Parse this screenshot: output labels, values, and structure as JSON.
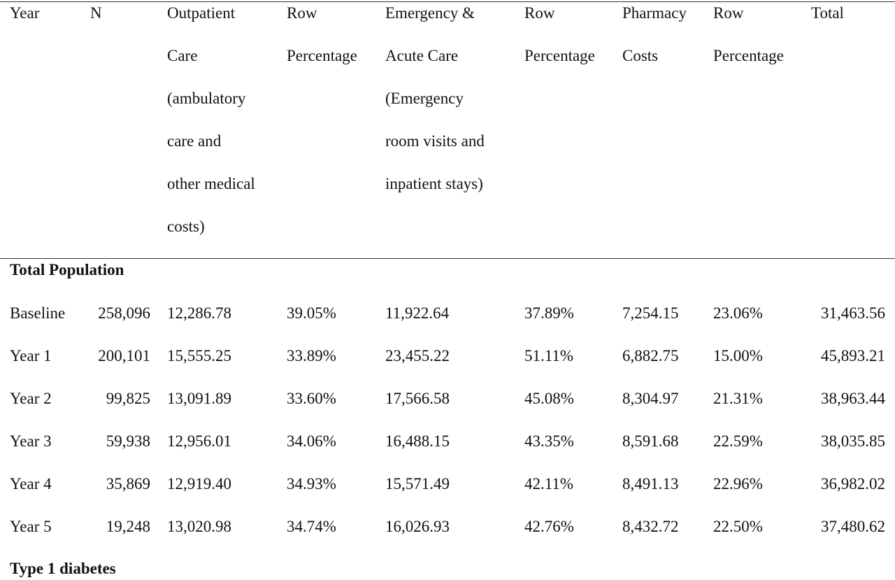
{
  "headers": {
    "year": "Year",
    "n": "N",
    "outpatient": "Outpatient\nCare\n(ambulatory\ncare and\nother medical\ncosts)",
    "row_pct_1": "Row\nPercentage",
    "emergency": "Emergency &\nAcute Care\n(Emergency\nroom visits and\ninpatient stays)",
    "row_pct_2": "Row\nPercentage",
    "pharmacy": "Pharmacy\nCosts",
    "row_pct_3": "Row\nPercentage",
    "total": "Total"
  },
  "sections": {
    "total_population": "Total Population",
    "type1": "Type 1 diabetes"
  },
  "rows": [
    {
      "year": "Baseline",
      "n": "258,096",
      "outpatient": "12,286.78",
      "pct1": "39.05%",
      "emergency": "11,922.64",
      "pct2": "37.89%",
      "pharmacy": "7,254.15",
      "pct3": "23.06%",
      "total": "31,463.56"
    },
    {
      "year": "Year 1",
      "n": "200,101",
      "outpatient": "15,555.25",
      "pct1": "33.89%",
      "emergency": "23,455.22",
      "pct2": "51.11%",
      "pharmacy": "6,882.75",
      "pct3": "15.00%",
      "total": "45,893.21"
    },
    {
      "year": "Year 2",
      "n": "99,825",
      "outpatient": "13,091.89",
      "pct1": "33.60%",
      "emergency": "17,566.58",
      "pct2": "45.08%",
      "pharmacy": "8,304.97",
      "pct3": "21.31%",
      "total": "38,963.44"
    },
    {
      "year": "Year 3",
      "n": "59,938",
      "outpatient": "12,956.01",
      "pct1": "34.06%",
      "emergency": "16,488.15",
      "pct2": "43.35%",
      "pharmacy": "8,591.68",
      "pct3": "22.59%",
      "total": "38,035.85"
    },
    {
      "year": "Year 4",
      "n": "35,869",
      "outpatient": "12,919.40",
      "pct1": "34.93%",
      "emergency": "15,571.49",
      "pct2": "42.11%",
      "pharmacy": "8,491.13",
      "pct3": "22.96%",
      "total": "36,982.02"
    },
    {
      "year": "Year 5",
      "n": "19,248",
      "outpatient": "13,020.98",
      "pct1": "34.74%",
      "emergency": "16,026.93",
      "pct2": "42.76%",
      "pharmacy": "8,432.72",
      "pct3": "22.50%",
      "total": "37,480.62"
    }
  ]
}
